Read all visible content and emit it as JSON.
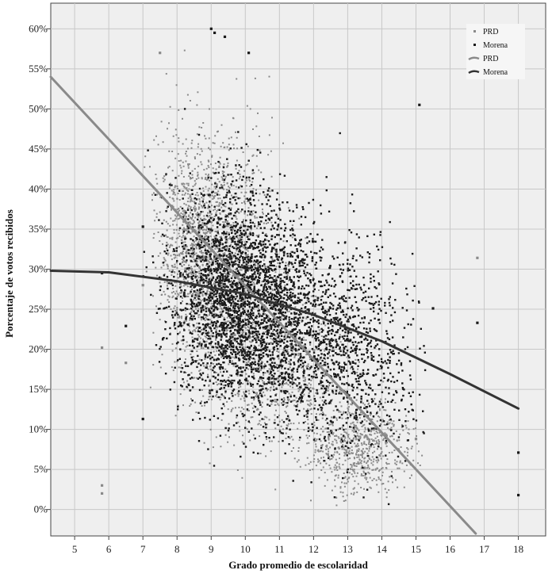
{
  "chart_data": {
    "type": "scatter",
    "title": "",
    "xlabel": "Grado promedio de escolaridad",
    "ylabel": "Porcentaje de votos recibidos",
    "xlim": [
      4.3,
      18.8
    ],
    "ylim": [
      -3.3,
      63.2
    ],
    "x_ticks": [
      5,
      6,
      7,
      8,
      9,
      10,
      11,
      12,
      13,
      14,
      15,
      16,
      17,
      18
    ],
    "x_tick_labels": [
      "5",
      "6",
      "7",
      "8",
      "9",
      "10",
      "11",
      "12",
      "13",
      "14",
      "15",
      "16",
      "17",
      "18"
    ],
    "y_ticks": [
      0,
      5,
      10,
      15,
      20,
      25,
      30,
      35,
      40,
      45,
      50,
      55,
      60
    ],
    "y_tick_labels": [
      "0%",
      "5%",
      "10%",
      "15%",
      "20%",
      "25%",
      "30%",
      "35%",
      "40%",
      "45%",
      "50%",
      "55%",
      "60%"
    ],
    "grid": true,
    "legend_position": "top-right",
    "legend": [
      {
        "label": "PRD",
        "kind": "marker",
        "color": "#8a8a8a"
      },
      {
        "label": "Morena",
        "kind": "marker",
        "color": "#1a1a1a"
      },
      {
        "label": "PRD",
        "kind": "line",
        "color": "#8a8a8a"
      },
      {
        "label": "Morena",
        "kind": "line",
        "color": "#333333"
      }
    ],
    "series": [
      {
        "name": "PRD",
        "kind": "scatter",
        "color": "#8a8a8a",
        "approx_point_count": 3500,
        "centroids": [
          {
            "x": 8.5,
            "y": 33,
            "sx": 0.55,
            "sy": 7,
            "weight": 0.28
          },
          {
            "x": 9.5,
            "y": 30,
            "sx": 0.8,
            "sy": 8,
            "weight": 0.3
          },
          {
            "x": 11.0,
            "y": 18,
            "sx": 1.0,
            "sy": 5,
            "weight": 0.22
          },
          {
            "x": 13.3,
            "y": 8,
            "sx": 0.8,
            "sy": 3,
            "weight": 0.2
          }
        ],
        "x": [
          5.8,
          5.8,
          6.5,
          5.8,
          7.0,
          7.5,
          15.0,
          16.8
        ],
        "y": [
          2.0,
          3.0,
          18.3,
          20.2,
          28.0,
          57.0,
          8.8,
          31.4
        ]
      },
      {
        "name": "Morena",
        "kind": "scatter",
        "color": "#1a1a1a",
        "approx_point_count": 4000,
        "centroids": [
          {
            "x": 9.5,
            "y": 27,
            "sx": 0.85,
            "sy": 6.5,
            "weight": 0.45
          },
          {
            "x": 11.0,
            "y": 24,
            "sx": 1.0,
            "sy": 6.5,
            "weight": 0.35
          },
          {
            "x": 13.2,
            "y": 19,
            "sx": 0.9,
            "sy": 6.5,
            "weight": 0.2
          }
        ],
        "x": [
          9.0,
          9.1,
          9.4,
          10.1,
          6.5,
          7.0,
          7.0,
          15.1,
          15.5,
          16.8,
          18.0,
          18.0,
          5.8
        ],
        "y": [
          60.0,
          59.5,
          59.0,
          57.0,
          22.9,
          35.3,
          11.3,
          50.5,
          25.1,
          23.3,
          7.1,
          1.8,
          29.5
        ]
      },
      {
        "name": "PRD",
        "kind": "line",
        "color": "#8a8a8a",
        "x": [
          4.3,
          16.75
        ],
        "y": [
          54.0,
          -3.0
        ]
      },
      {
        "name": "Morena",
        "kind": "line",
        "color": "#333333",
        "x": [
          4.3,
          6.0,
          8.0,
          10.0,
          12.0,
          14.0,
          16.0,
          18.0
        ],
        "y": [
          29.8,
          29.6,
          28.5,
          26.9,
          24.3,
          21.0,
          16.9,
          12.6
        ]
      }
    ]
  }
}
